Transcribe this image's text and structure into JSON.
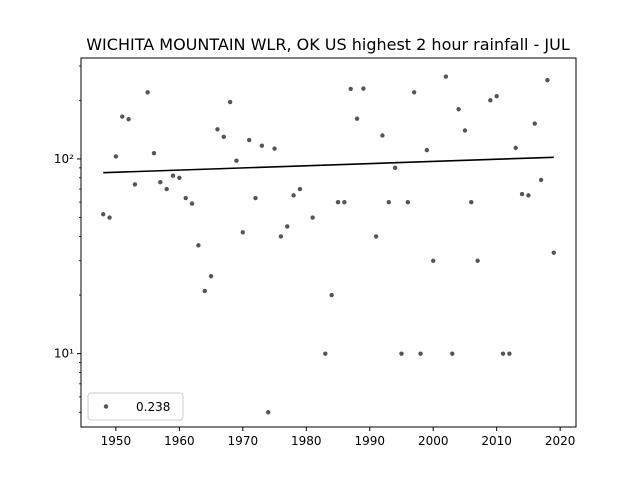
{
  "chart_data": {
    "type": "scatter",
    "title": "WICHITA MOUNTAIN WLR, OK US highest 2 hour rainfall - JUL",
    "xlabel": "",
    "ylabel": "",
    "xlim": [
      1944.5,
      2022.5
    ],
    "ylim": [
      4.2,
      330
    ],
    "yscale": "log",
    "x_ticks": [
      1950,
      1960,
      1970,
      1980,
      1990,
      2000,
      2010,
      2020
    ],
    "x_tick_labels": [
      "1950",
      "1960",
      "1970",
      "1980",
      "1990",
      "2000",
      "2010",
      "2020"
    ],
    "y_ticks": [
      10,
      100
    ],
    "y_tick_labels": [
      "10¹",
      "10²"
    ],
    "grid": false,
    "legend_placement": "lower-left",
    "legend_label": "0.238",
    "marker_color": "#555555",
    "line_color": "#000000",
    "series": [
      {
        "kind": "points",
        "x": [
          1948,
          1949,
          1950,
          1951,
          1952,
          1953,
          1955,
          1956,
          1957,
          1958,
          1959,
          1960,
          1961,
          1962,
          1963,
          1964,
          1965,
          1966,
          1967,
          1968,
          1969,
          1970,
          1971,
          1972,
          1973,
          1974,
          1975,
          1976,
          1977,
          1978,
          1979,
          1981,
          1983,
          1984,
          1985,
          1986,
          1987,
          1988,
          1989,
          1991,
          1992,
          1993,
          1994,
          1995,
          1996,
          1997,
          1998,
          1999,
          2000,
          2002,
          2003,
          2004,
          2005,
          2006,
          2007,
          2009,
          2010,
          2011,
          2012,
          2013,
          2014,
          2015,
          2016,
          2017,
          2018,
          2019
        ],
        "y": [
          52,
          50,
          103,
          165,
          160,
          74,
          220,
          107,
          76,
          70,
          82,
          80,
          63,
          59,
          36,
          21,
          25,
          142,
          130,
          196,
          98,
          42,
          125,
          63,
          117,
          5,
          113,
          40,
          45,
          65,
          70,
          50,
          10,
          20,
          60,
          60,
          229,
          161,
          230,
          40,
          132,
          60,
          90,
          10,
          60,
          220,
          10,
          111,
          30,
          265,
          10,
          180,
          140,
          60,
          30,
          200,
          210,
          10,
          10,
          114,
          66,
          65,
          152,
          78,
          254,
          33
        ]
      },
      {
        "kind": "trend",
        "x": [
          1948,
          2019
        ],
        "y": [
          85,
          102
        ]
      }
    ]
  }
}
